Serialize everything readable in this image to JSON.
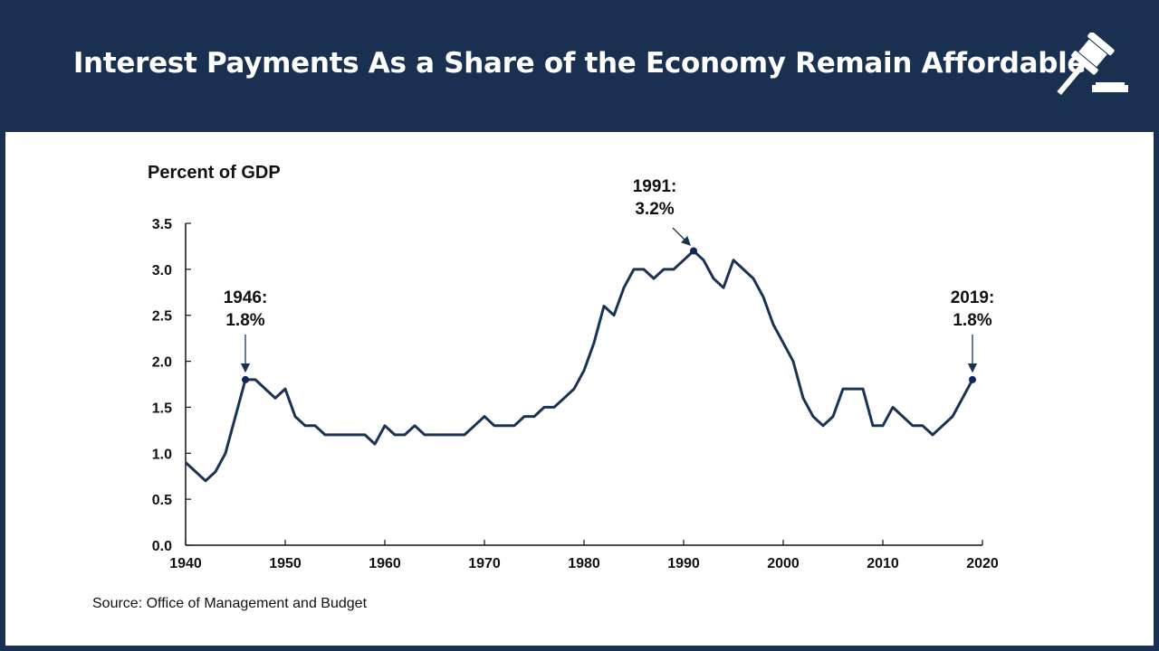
{
  "header": {
    "title": "Interest Payments As a Share of the Economy Remain Affordable",
    "icon": "gavel-icon"
  },
  "chart_data": {
    "type": "line",
    "ylabel": "Percent of GDP",
    "xlim": [
      1940,
      2020
    ],
    "ylim": [
      0,
      3.5
    ],
    "x_ticks": [
      "1940",
      "1950",
      "1960",
      "1970",
      "1980",
      "1990",
      "2000",
      "2010",
      "2020"
    ],
    "y_ticks": [
      "0.0",
      "0.5",
      "1.0",
      "1.5",
      "2.0",
      "2.5",
      "3.0",
      "3.5"
    ],
    "grid": false,
    "line_color": "#1b3352",
    "x": [
      1940,
      1941,
      1942,
      1943,
      1944,
      1945,
      1946,
      1947,
      1948,
      1949,
      1950,
      1951,
      1952,
      1953,
      1954,
      1955,
      1956,
      1957,
      1958,
      1959,
      1960,
      1961,
      1962,
      1963,
      1964,
      1965,
      1966,
      1967,
      1968,
      1969,
      1970,
      1971,
      1972,
      1973,
      1974,
      1975,
      1976,
      1977,
      1978,
      1979,
      1980,
      1981,
      1982,
      1983,
      1984,
      1985,
      1986,
      1987,
      1988,
      1989,
      1990,
      1991,
      1992,
      1993,
      1994,
      1995,
      1996,
      1997,
      1998,
      1999,
      2000,
      2001,
      2002,
      2003,
      2004,
      2005,
      2006,
      2007,
      2008,
      2009,
      2010,
      2011,
      2012,
      2013,
      2014,
      2015,
      2016,
      2017,
      2018,
      2019
    ],
    "values": [
      0.9,
      0.8,
      0.7,
      0.8,
      1.0,
      1.4,
      1.8,
      1.8,
      1.7,
      1.6,
      1.7,
      1.4,
      1.3,
      1.3,
      1.2,
      1.2,
      1.2,
      1.2,
      1.2,
      1.1,
      1.3,
      1.2,
      1.2,
      1.3,
      1.2,
      1.2,
      1.2,
      1.2,
      1.2,
      1.3,
      1.4,
      1.3,
      1.3,
      1.3,
      1.4,
      1.4,
      1.5,
      1.5,
      1.6,
      1.7,
      1.9,
      2.2,
      2.6,
      2.5,
      2.8,
      3.0,
      3.0,
      2.9,
      3.0,
      3.0,
      3.1,
      3.2,
      3.1,
      2.9,
      2.8,
      3.1,
      3.0,
      2.9,
      2.7,
      2.4,
      2.2,
      2.0,
      1.6,
      1.4,
      1.3,
      1.4,
      1.7,
      1.7,
      1.7,
      1.3,
      1.3,
      1.5,
      1.4,
      1.3,
      1.3,
      1.2,
      1.3,
      1.4,
      1.6,
      1.8
    ],
    "annotations": [
      {
        "x": 1946,
        "y": 1.8,
        "line1": "1946:",
        "line2": "1.8%"
      },
      {
        "x": 1991,
        "y": 3.2,
        "line1": "1991:",
        "line2": "3.2%"
      },
      {
        "x": 2019,
        "y": 1.8,
        "line1": "2019:",
        "line2": "1.8%"
      }
    ]
  },
  "source": "Source: Office of Management and Budget"
}
